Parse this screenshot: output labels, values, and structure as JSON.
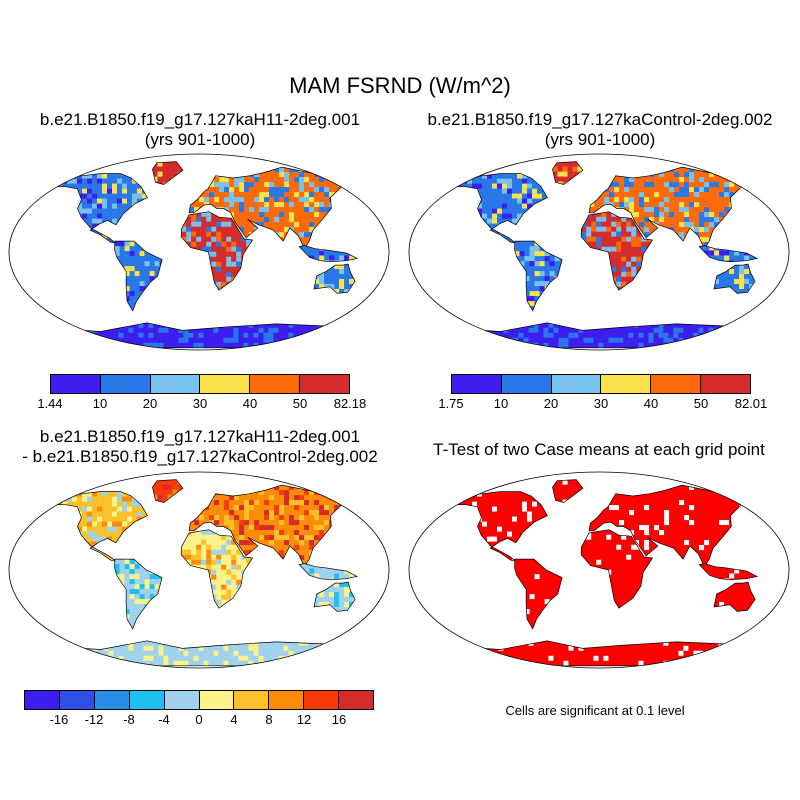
{
  "title": "MAM FSRND (W/m^2)",
  "panels": [
    {
      "title_line1": "b.e21.B1850.f19_g17.127kaH11-2deg.001",
      "title_line2": "(yrs 901-1000)"
    },
    {
      "title_line1": "b.e21.B1850.f19_g17.127kaControl-2deg.002",
      "title_line2": "(yrs 901-1000)"
    },
    {
      "title_line1": "b.e21.B1850.f19_g17.127kaH11-2deg.001",
      "title_line2": "- b.e21.B1850.f19_g17.127kaControl-2deg.002"
    },
    {
      "title_line1": "T-Test of two Case means at each grid point",
      "title_line2": ""
    }
  ],
  "colorbars": [
    {
      "labels": [
        "1.44",
        "10",
        "20",
        "30",
        "40",
        "50",
        "82.18"
      ],
      "colors": [
        "#3c1ef0",
        "#2a78e8",
        "#78c3ee",
        "#f9e24a",
        "#fb6b0c",
        "#d42c2c"
      ]
    },
    {
      "labels": [
        "1.75",
        "10",
        "20",
        "30",
        "40",
        "50",
        "82.01"
      ],
      "colors": [
        "#3c1ef0",
        "#2a78e8",
        "#78c3ee",
        "#f9e24a",
        "#fb6b0c",
        "#d42c2c"
      ]
    },
    {
      "labels": [
        "-16",
        "-12",
        "-8",
        "-4",
        "0",
        "4",
        "8",
        "12",
        "16"
      ],
      "colors": [
        "#3c1ef0",
        "#2e4fe6",
        "#2a8ee8",
        "#1ec0f0",
        "#a0d2ec",
        "#fbf28a",
        "#fbc12a",
        "#fb8c0a",
        "#fb3a0a",
        "#d42c2c"
      ]
    }
  ],
  "note": "Cells are significant at 0.1 level"
}
